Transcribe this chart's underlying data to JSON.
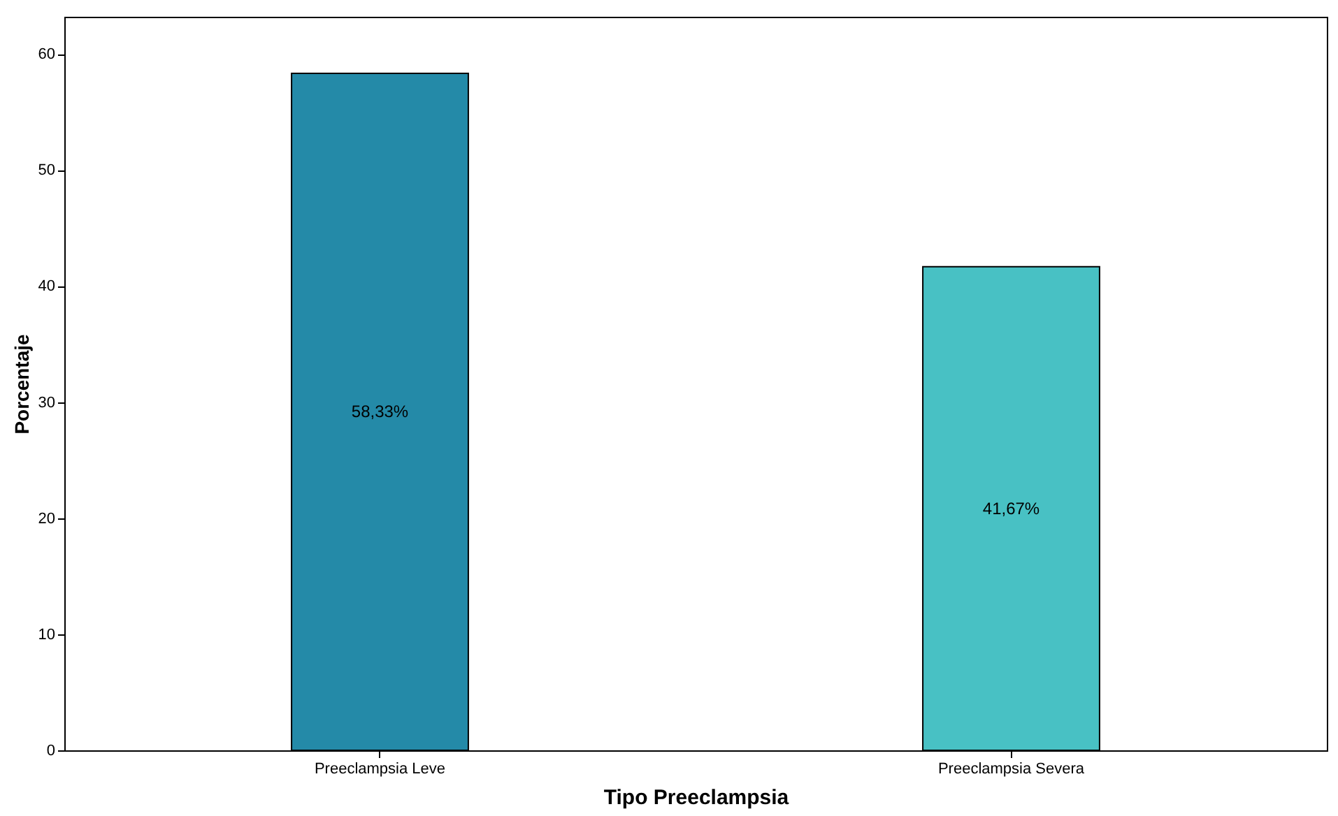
{
  "chart_data": {
    "type": "bar",
    "xlabel": "Tipo Preeclampsia",
    "ylabel": "Porcentaje",
    "categories": [
      "Preeclampsia Leve",
      "Preeclampsia Severa"
    ],
    "values": [
      58.33,
      41.67
    ],
    "colors": [
      "#248aa8",
      "#48c1c4"
    ],
    "value_labels": [
      "58,33%",
      "41,67%"
    ],
    "ylim": [
      0,
      63.2
    ],
    "yticks": [
      0,
      10,
      20,
      30,
      40,
      50,
      60
    ],
    "grid": false
  }
}
